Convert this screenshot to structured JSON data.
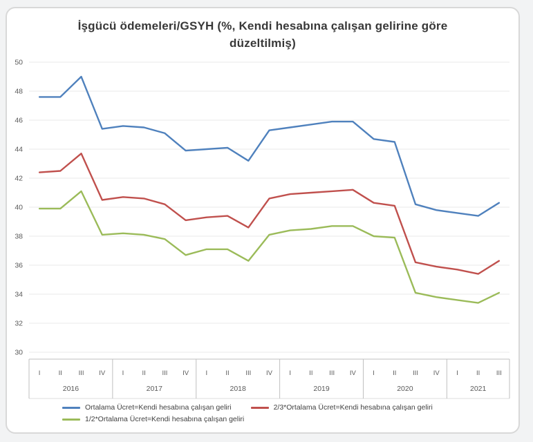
{
  "title": "İşgücü ödemeleri/GSYH (%, Kendi hesabına çalışan gelirine göre düzeltilmiş)",
  "colors": {
    "series_blue": "#4F81BD",
    "series_red": "#C0504D",
    "series_green": "#9BBB59",
    "gridline": "#e9e9e9",
    "axis_line": "#bfbfbf",
    "tick_text": "#595959",
    "title_text": "#383838"
  },
  "chart_data": {
    "type": "line",
    "title": "İşgücü ödemeleri/GSYH (%, Kendi hesabına çalışan gelirine göre düzeltilmiş)",
    "ylim": [
      30,
      50
    ],
    "ytick_step": 2,
    "grid": true,
    "legend_position": "bottom",
    "x_groups": [
      {
        "year": "2016",
        "quarters": [
          "I",
          "II",
          "III",
          "IV"
        ]
      },
      {
        "year": "2017",
        "quarters": [
          "I",
          "II",
          "III",
          "IV"
        ]
      },
      {
        "year": "2018",
        "quarters": [
          "I",
          "II",
          "III",
          "IV"
        ]
      },
      {
        "year": "2019",
        "quarters": [
          "I",
          "II",
          "III",
          "IV"
        ]
      },
      {
        "year": "2020",
        "quarters": [
          "I",
          "II",
          "III",
          "IV"
        ]
      },
      {
        "year": "2021",
        "quarters": [
          "I",
          "II",
          "III"
        ]
      }
    ],
    "series": [
      {
        "name": "Ortalama Ücret=Kendi hesabına çalışan geliri",
        "color": "#4F81BD",
        "values": [
          47.6,
          47.6,
          49.0,
          45.4,
          45.6,
          45.5,
          45.1,
          43.9,
          44.0,
          44.1,
          43.2,
          45.3,
          45.5,
          45.7,
          45.9,
          45.9,
          44.7,
          44.5,
          40.2,
          39.8,
          39.6,
          39.4,
          40.3
        ]
      },
      {
        "name": "2/3*Ortalama Ücret=Kendi hesabına çalışan geliri",
        "color": "#C0504D",
        "values": [
          42.4,
          42.5,
          43.7,
          40.5,
          40.7,
          40.6,
          40.2,
          39.1,
          39.3,
          39.4,
          38.6,
          40.6,
          40.9,
          41.0,
          41.1,
          41.2,
          40.3,
          40.1,
          36.2,
          35.9,
          35.7,
          35.4,
          36.3
        ]
      },
      {
        "name": "1/2*Ortalama Ücret=Kendi hesabına çalışan geliri",
        "color": "#9BBB59",
        "values": [
          39.9,
          39.9,
          41.1,
          38.1,
          38.2,
          38.1,
          37.8,
          36.7,
          37.1,
          37.1,
          36.3,
          38.1,
          38.4,
          38.5,
          38.7,
          38.7,
          38.0,
          37.9,
          34.1,
          33.8,
          33.6,
          33.4,
          34.1
        ]
      }
    ]
  }
}
